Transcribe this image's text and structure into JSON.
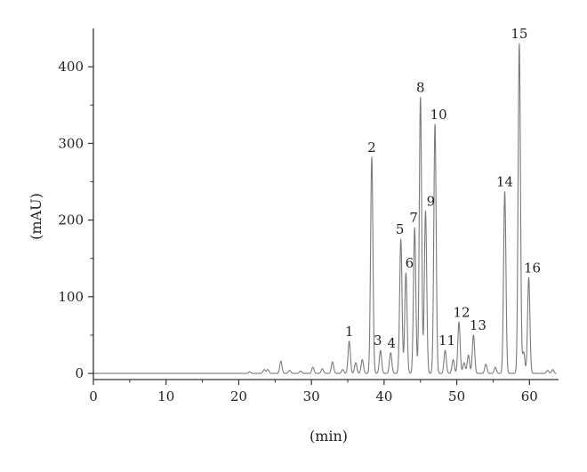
{
  "chart_data": {
    "type": "line",
    "title": "",
    "xlabel": "(min)",
    "ylabel": "(mAU)",
    "xlim": [
      0,
      64
    ],
    "ylim": [
      -8,
      450
    ],
    "xticks": [
      0,
      10,
      20,
      30,
      40,
      50,
      60
    ],
    "yticks": [
      0,
      100,
      200,
      300,
      400
    ],
    "grid": false,
    "line_color": "#7a7a7a",
    "axis_color": "#333333",
    "baseline": 0,
    "peaks": [
      {
        "label": "1",
        "t": 35.2,
        "h": 42
      },
      {
        "label": "",
        "t": 36.1,
        "h": 14
      },
      {
        "label": "",
        "t": 37.0,
        "h": 18
      },
      {
        "label": "2",
        "t": 38.3,
        "h": 282
      },
      {
        "label": "3",
        "t": 39.5,
        "h": 30
      },
      {
        "label": "4",
        "t": 40.9,
        "h": 27
      },
      {
        "label": "5",
        "t": 42.3,
        "h": 175
      },
      {
        "label": "6",
        "t": 43.0,
        "h": 131
      },
      {
        "label": "7",
        "t": 44.2,
        "h": 190
      },
      {
        "label": "8",
        "t": 45.0,
        "h": 360
      },
      {
        "label": "9",
        "t": 45.7,
        "h": 212
      },
      {
        "label": "10",
        "t": 47.0,
        "h": 325
      },
      {
        "label": "11",
        "t": 48.4,
        "h": 30
      },
      {
        "label": "",
        "t": 49.5,
        "h": 18
      },
      {
        "label": "12",
        "t": 50.3,
        "h": 67
      },
      {
        "label": "",
        "t": 51.0,
        "h": 14
      },
      {
        "label": "",
        "t": 51.6,
        "h": 24
      },
      {
        "label": "13",
        "t": 52.3,
        "h": 50
      },
      {
        "label": "",
        "t": 54.0,
        "h": 12
      },
      {
        "label": "",
        "t": 55.3,
        "h": 8
      },
      {
        "label": "14",
        "t": 56.6,
        "h": 237
      },
      {
        "label": "15",
        "t": 58.6,
        "h": 430
      },
      {
        "label": "",
        "t": 59.2,
        "h": 28
      },
      {
        "label": "16",
        "t": 59.9,
        "h": 125
      },
      {
        "label": "",
        "t": 62.5,
        "h": 4
      },
      {
        "label": "",
        "t": 63.2,
        "h": 5
      }
    ],
    "minor_peaks": [
      {
        "t": 21.5,
        "h": 2
      },
      {
        "t": 23.5,
        "h": 5
      },
      {
        "t": 24.0,
        "h": 5
      },
      {
        "t": 25.8,
        "h": 16
      },
      {
        "t": 27.0,
        "h": 4
      },
      {
        "t": 28.5,
        "h": 3
      },
      {
        "t": 30.2,
        "h": 8
      },
      {
        "t": 31.5,
        "h": 6
      },
      {
        "t": 32.9,
        "h": 15
      },
      {
        "t": 34.3,
        "h": 5
      }
    ]
  }
}
